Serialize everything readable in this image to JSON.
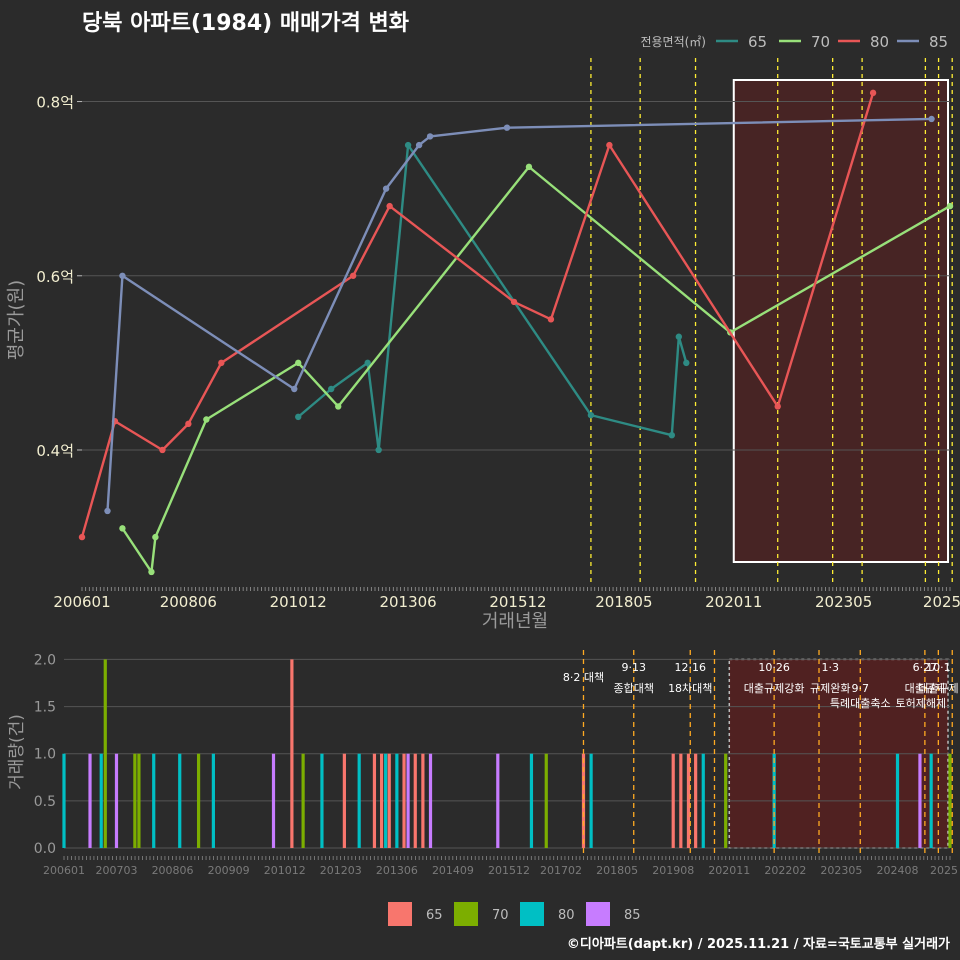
{
  "title": "당북 아파트(1984) 매매가격 변화",
  "footer": "©디아파트(dapt.kr) / 2025.11.21 / 자료=국토교통부 실거래가",
  "colors": {
    "background": "#2b2b2b",
    "grid": "#555555",
    "policy_line": "#ffee33",
    "policy_line_bottom": "#ffaa22",
    "highlight_fill": "#5a1f1f",
    "highlight_border": "#ffffff"
  },
  "chart_data": [
    {
      "type": "line",
      "title": "당북 아파트(1984) 매매가격 변화",
      "xlabel": "거래년월",
      "ylabel": "평균가(원)",
      "legend_title": "전용면적(㎡)",
      "legend_position": "top-right",
      "xlim": [
        2006.0,
        2025.75
      ],
      "ylim": [
        0.245,
        0.85
      ],
      "x_tick_labels": [
        "200601",
        "200806",
        "201012",
        "201306",
        "201512",
        "201805",
        "202011",
        "202305",
        "2025"
      ],
      "x_ticks": [
        2006.0,
        2008.42,
        2010.92,
        2013.42,
        2015.92,
        2018.33,
        2020.83,
        2023.33,
        2025.75
      ],
      "y_ticks": [
        0.4,
        0.6,
        0.8
      ],
      "y_tick_labels": [
        "0.4억",
        "0.6억",
        "0.8억"
      ],
      "policy_lines": [
        2017.58,
        2018.7,
        2019.96,
        2021.83,
        2023.08,
        2023.75,
        2025.19,
        2025.49,
        2025.8
      ],
      "highlight_range": [
        2020.83,
        2025.75
      ],
      "series": [
        {
          "name": "65",
          "color": "#2e8b84",
          "points": [
            [
              2010.92,
              0.438
            ],
            [
              2011.67,
              0.47
            ],
            [
              2012.5,
              0.5
            ],
            [
              2012.75,
              0.4
            ],
            [
              2013.42,
              0.75
            ],
            [
              2017.58,
              0.44
            ],
            [
              2019.42,
              0.417
            ],
            [
              2019.58,
              0.53
            ],
            [
              2019.75,
              0.5
            ]
          ]
        },
        {
          "name": "70",
          "color": "#98e07a",
          "points": [
            [
              2006.92,
              0.31
            ],
            [
              2007.58,
              0.26
            ],
            [
              2007.67,
              0.3
            ],
            [
              2008.83,
              0.435
            ],
            [
              2010.92,
              0.5
            ],
            [
              2011.83,
              0.45
            ],
            [
              2016.17,
              0.725
            ],
            [
              2020.75,
              0.535
            ],
            [
              2025.75,
              0.68
            ]
          ]
        },
        {
          "name": "80",
          "color": "#e85656",
          "points": [
            [
              2006.0,
              0.3
            ],
            [
              2006.75,
              0.433
            ],
            [
              2007.83,
              0.4
            ],
            [
              2008.42,
              0.43
            ],
            [
              2009.17,
              0.5
            ],
            [
              2012.17,
              0.6
            ],
            [
              2013.0,
              0.68
            ],
            [
              2015.83,
              0.57
            ],
            [
              2016.67,
              0.55
            ],
            [
              2018.0,
              0.75
            ],
            [
              2021.83,
              0.45
            ],
            [
              2024.0,
              0.81
            ]
          ]
        },
        {
          "name": "85",
          "color": "#7d8eb8",
          "points": [
            [
              2006.58,
              0.33
            ],
            [
              2006.92,
              0.6
            ],
            [
              2010.83,
              0.47
            ],
            [
              2012.92,
              0.7
            ],
            [
              2013.67,
              0.75
            ],
            [
              2013.92,
              0.76
            ],
            [
              2015.67,
              0.77
            ],
            [
              2025.33,
              0.78
            ]
          ]
        }
      ]
    },
    {
      "type": "bar",
      "ylabel": "거래량(건)",
      "xlim": [
        2006.0,
        2025.75
      ],
      "ylim": [
        0,
        2.1
      ],
      "y_ticks": [
        0.0,
        0.5,
        1.0,
        1.5,
        2.0
      ],
      "y_tick_labels": [
        "0.0",
        "0.5",
        "1.0",
        "1.5",
        "2.0"
      ],
      "x_tick_labels": [
        "200601",
        "200703",
        "200806",
        "200909",
        "201012",
        "201203",
        "201306",
        "201409",
        "201512",
        "201702",
        "201805",
        "201908",
        "202011",
        "202202",
        "202305",
        "202408",
        "2025"
      ],
      "x_ticks": [
        2006.0,
        2007.17,
        2008.42,
        2009.67,
        2010.92,
        2012.17,
        2013.42,
        2014.67,
        2015.92,
        2017.08,
        2018.33,
        2019.58,
        2020.83,
        2022.08,
        2023.33,
        2024.58,
        2025.75
      ],
      "policy_lines": [
        2017.58,
        2018.7,
        2019.96,
        2020.5,
        2021.83,
        2022.83,
        2023.75,
        2025.19,
        2025.49,
        2025.8
      ],
      "policy_labels": [
        {
          "x": 2017.58,
          "row": 2,
          "text": "8·2 대책"
        },
        {
          "x": 2018.7,
          "row": 1,
          "text": "9·13"
        },
        {
          "x": 2018.7,
          "row": 3,
          "text": "종합대책"
        },
        {
          "x": 2019.96,
          "row": 1,
          "text": "12·16"
        },
        {
          "x": 2019.96,
          "row": 3,
          "text": "18차대책"
        },
        {
          "x": 2021.83,
          "row": 1,
          "text": "10·26"
        },
        {
          "x": 2021.83,
          "row": 3,
          "text": "대출규제강화"
        },
        {
          "x": 2023.08,
          "row": 1,
          "text": "1·3"
        },
        {
          "x": 2023.08,
          "row": 3,
          "text": "규제완화"
        },
        {
          "x": 2023.75,
          "row": 3,
          "text": "9·7"
        },
        {
          "x": 2023.75,
          "row": 4,
          "text": "특례대출축소"
        },
        {
          "x": 2025.19,
          "row": 1,
          "text": "6·27"
        },
        {
          "x": 2025.19,
          "row": 3,
          "text": "대출규제"
        },
        {
          "x": 2025.49,
          "row": 1,
          "text": "10·1"
        },
        {
          "x": 2025.49,
          "row": 3,
          "text": "대출규제"
        },
        {
          "x": 2025.1,
          "row": 4,
          "text": "토허제해제"
        }
      ],
      "legend_position": "bottom",
      "series": [
        {
          "name": "65",
          "color": "#f8766d",
          "bars": [
            [
              2011.08,
              2
            ],
            [
              2012.25,
              1
            ],
            [
              2012.92,
              1
            ],
            [
              2013.08,
              1
            ],
            [
              2013.25,
              1
            ],
            [
              2013.58,
              1
            ],
            [
              2013.83,
              1
            ],
            [
              2014.0,
              1
            ],
            [
              2017.58,
              1
            ],
            [
              2019.58,
              1
            ],
            [
              2019.75,
              1
            ],
            [
              2019.92,
              1
            ],
            [
              2020.08,
              1
            ]
          ]
        },
        {
          "name": "70",
          "color": "#7cae00",
          "bars": [
            [
              2006.92,
              2
            ],
            [
              2007.58,
              1
            ],
            [
              2007.67,
              1
            ],
            [
              2009.0,
              1
            ],
            [
              2011.33,
              1
            ],
            [
              2016.75,
              1
            ],
            [
              2020.75,
              1
            ],
            [
              2025.75,
              1
            ]
          ]
        },
        {
          "name": "80",
          "color": "#00bfc4",
          "bars": [
            [
              2006.0,
              1
            ],
            [
              2006.83,
              1
            ],
            [
              2008.0,
              1
            ],
            [
              2008.58,
              1
            ],
            [
              2009.33,
              1
            ],
            [
              2011.75,
              1
            ],
            [
              2012.58,
              1
            ],
            [
              2013.17,
              1
            ],
            [
              2013.42,
              1
            ],
            [
              2016.42,
              1
            ],
            [
              2017.75,
              1
            ],
            [
              2020.25,
              1
            ],
            [
              2021.83,
              1
            ],
            [
              2024.58,
              1
            ],
            [
              2025.33,
              1
            ]
          ]
        },
        {
          "name": "85",
          "color": "#c77cff",
          "bars": [
            [
              2006.58,
              1
            ],
            [
              2007.17,
              1
            ],
            [
              2010.67,
              1
            ],
            [
              2013.67,
              1
            ],
            [
              2014.17,
              1
            ],
            [
              2015.67,
              1
            ],
            [
              2025.08,
              1
            ]
          ]
        }
      ]
    }
  ]
}
